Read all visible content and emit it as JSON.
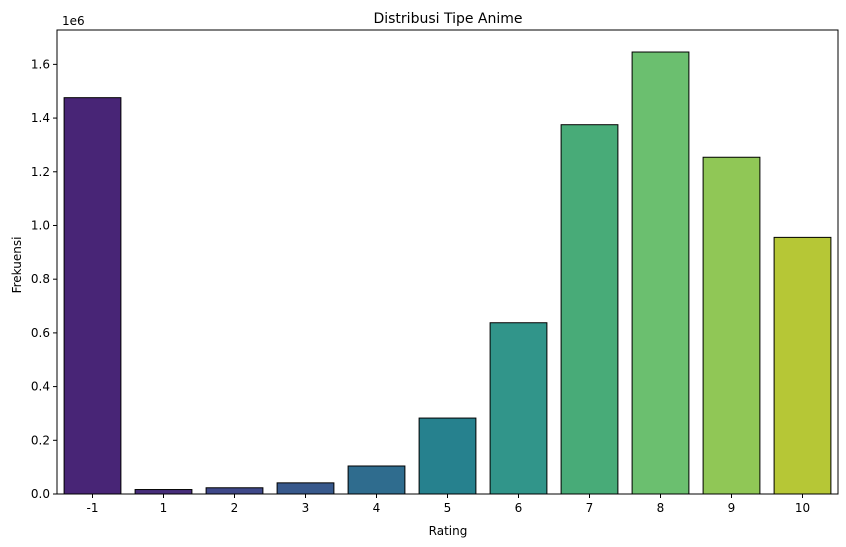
{
  "chart_data": {
    "type": "bar",
    "title": "Distribusi Tipe Anime",
    "xlabel": "Rating",
    "ylabel": "Frekuensi",
    "offset_label": "1e6",
    "categories": [
      "-1",
      "1",
      "2",
      "3",
      "4",
      "5",
      "6",
      "7",
      "8",
      "9",
      "10"
    ],
    "values": [
      1476000,
      16600,
      23200,
      41500,
      104300,
      282800,
      637800,
      1375300,
      1646000,
      1254100,
      955700
    ],
    "ylim": [
      0,
      1728000
    ],
    "yticks": [
      0,
      200000,
      400000,
      600000,
      800000,
      1000000,
      1200000,
      1400000,
      1600000
    ],
    "ytick_labels": [
      "0.0",
      "0.2",
      "0.4",
      "0.6",
      "0.8",
      "1.0",
      "1.2",
      "1.4",
      "1.6"
    ],
    "colors": [
      "#482576",
      "#472d7b",
      "#3f4889",
      "#38598c",
      "#2f6c8e",
      "#26818e",
      "#31958a",
      "#48ab78",
      "#6bbf6f",
      "#90c756",
      "#b6c736"
    ],
    "edge_color": "#000000",
    "grid": false,
    "legend": "none"
  }
}
